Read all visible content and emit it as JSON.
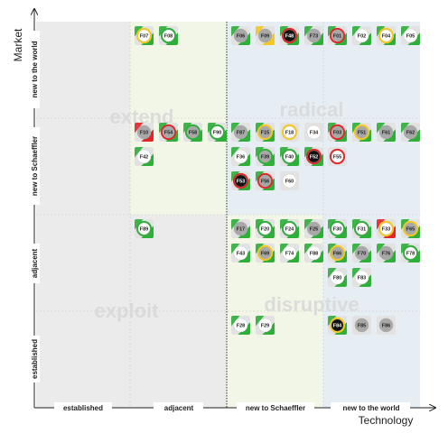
{
  "axes": {
    "x_title": "Technology",
    "y_title": "Market",
    "x_levels": [
      "established",
      "adjacent",
      "new to Schaeffler",
      "new to the world"
    ],
    "y_levels": [
      "established",
      "adjacent",
      "new to Schaeffler",
      "new to the world"
    ]
  },
  "zones": {
    "extend": "extend",
    "radical": "radical",
    "exploit": "exploit",
    "disruptive": "disruptive"
  },
  "colors": {
    "grey_zone": "#ebebeb",
    "green_zone": "#f2f6e6",
    "blue_zone": "#e6eef4",
    "chip_bg": "#e2e2e2",
    "green": "#2fae3a",
    "red": "#e0262a",
    "yellow": "#f4c820",
    "dark": "#111111",
    "circle_grey": "#a8a8a8",
    "circle_white": "#ffffff"
  },
  "chips": [
    {
      "label": "F07",
      "x": 1,
      "y": 3,
      "col": 0,
      "row": 0,
      "fill": "white",
      "ring": "yellow",
      "corner": "green"
    },
    {
      "label": "F08",
      "x": 1,
      "y": 3,
      "col": 1,
      "row": 0,
      "fill": "white",
      "ring": "green",
      "corner": "green"
    },
    {
      "label": "F06",
      "x": 2,
      "y": 3,
      "col": 0,
      "row": 0,
      "fill": "grey",
      "ring": "none",
      "corner": "green"
    },
    {
      "label": "F09",
      "x": 2,
      "y": 3,
      "col": 1,
      "row": 0,
      "fill": "grey",
      "ring": "none",
      "corner": "yellow"
    },
    {
      "label": "F48",
      "x": 2,
      "y": 3,
      "col": 2,
      "row": 0,
      "fill": "dark",
      "ring": "red",
      "corner": "green"
    },
    {
      "label": "F73",
      "x": 2,
      "y": 3,
      "col": 3,
      "row": 0,
      "fill": "grey",
      "ring": "none",
      "corner": "green"
    },
    {
      "label": "F01",
      "x": 3,
      "y": 3,
      "col": 0,
      "row": 0,
      "fill": "grey",
      "ring": "red",
      "corner": "green"
    },
    {
      "label": "F02",
      "x": 3,
      "y": 3,
      "col": 1,
      "row": 0,
      "fill": "white",
      "ring": "none",
      "corner": "green"
    },
    {
      "label": "F04",
      "x": 3,
      "y": 3,
      "col": 2,
      "row": 0,
      "fill": "white",
      "ring": "yellow",
      "corner": "green"
    },
    {
      "label": "F05",
      "x": 3,
      "y": 3,
      "col": 3,
      "row": 0,
      "fill": "white",
      "ring": "none",
      "corner": "green"
    },
    {
      "label": "F10",
      "x": 1,
      "y": 2,
      "col": 0,
      "row": 0,
      "fill": "grey",
      "ring": "none",
      "corner": "red"
    },
    {
      "label": "F54",
      "x": 1,
      "y": 2,
      "col": 1,
      "row": 0,
      "fill": "grey",
      "ring": "red",
      "corner": "green"
    },
    {
      "label": "F58",
      "x": 1,
      "y": 2,
      "col": 2,
      "row": 0,
      "fill": "grey",
      "ring": "green",
      "corner": "green"
    },
    {
      "label": "F90",
      "x": 1,
      "y": 2,
      "col": 3,
      "row": 0,
      "fill": "white",
      "ring": "green",
      "corner": "green"
    },
    {
      "label": "F42",
      "x": 1,
      "y": 2,
      "col": 0,
      "row": 1,
      "fill": "white",
      "ring": "none",
      "corner": "green"
    },
    {
      "label": "F87",
      "x": 2,
      "y": 2,
      "col": 0,
      "row": 0,
      "fill": "grey",
      "ring": "none",
      "corner": "green"
    },
    {
      "label": "F15",
      "x": 2,
      "y": 2,
      "col": 1,
      "row": 0,
      "fill": "grey",
      "ring": "yellow",
      "corner": "green"
    },
    {
      "label": "F18",
      "x": 2,
      "y": 2,
      "col": 2,
      "row": 0,
      "fill": "white",
      "ring": "yellow",
      "corner": "none"
    },
    {
      "label": "F34",
      "x": 2,
      "y": 2,
      "col": 3,
      "row": 0,
      "fill": "white",
      "ring": "none",
      "corner": "none"
    },
    {
      "label": "F36",
      "x": 2,
      "y": 2,
      "col": 0,
      "row": 1,
      "fill": "white",
      "ring": "none",
      "corner": "green"
    },
    {
      "label": "F39",
      "x": 2,
      "y": 2,
      "col": 1,
      "row": 1,
      "fill": "grey",
      "ring": "green",
      "corner": "green"
    },
    {
      "label": "F40",
      "x": 2,
      "y": 2,
      "col": 2,
      "row": 1,
      "fill": "white",
      "ring": "green",
      "corner": "green"
    },
    {
      "label": "F52",
      "x": 2,
      "y": 2,
      "col": 3,
      "row": 1,
      "fill": "dark",
      "ring": "red",
      "corner": "green"
    },
    {
      "label": "F53",
      "x": 2,
      "y": 2,
      "col": 0,
      "row": 2,
      "fill": "dark",
      "ring": "red",
      "corner": "green"
    },
    {
      "label": "F56",
      "x": 2,
      "y": 2,
      "col": 1,
      "row": 2,
      "fill": "grey",
      "ring": "red",
      "corner": "green"
    },
    {
      "label": "F60",
      "x": 2,
      "y": 2,
      "col": 2,
      "row": 2,
      "fill": "white",
      "ring": "none",
      "corner": "none"
    },
    {
      "label": "F03",
      "x": 3,
      "y": 2,
      "col": 0,
      "row": 0,
      "fill": "grey",
      "ring": "red",
      "corner": "green"
    },
    {
      "label": "F51",
      "x": 3,
      "y": 2,
      "col": 1,
      "row": 0,
      "fill": "grey",
      "ring": "yellow",
      "corner": "green"
    },
    {
      "label": "F61",
      "x": 3,
      "y": 2,
      "col": 2,
      "row": 0,
      "fill": "grey",
      "ring": "none",
      "corner": "green"
    },
    {
      "label": "F62",
      "x": 3,
      "y": 2,
      "col": 3,
      "row": 0,
      "fill": "grey",
      "ring": "none",
      "corner": "green"
    },
    {
      "label": "F55",
      "x": 3,
      "y": 2,
      "col": 0,
      "row": 1,
      "fill": "white",
      "ring": "red",
      "corner": "none"
    },
    {
      "label": "F89",
      "x": 1,
      "y": 1,
      "col": 0,
      "row": 0,
      "fill": "white",
      "ring": "green",
      "corner": "green"
    },
    {
      "label": "F17",
      "x": 2,
      "y": 1,
      "col": 0,
      "row": 0,
      "fill": "grey",
      "ring": "none",
      "corner": "green"
    },
    {
      "label": "F20",
      "x": 2,
      "y": 1,
      "col": 1,
      "row": 0,
      "fill": "white",
      "ring": "green",
      "corner": "green"
    },
    {
      "label": "F24",
      "x": 2,
      "y": 1,
      "col": 2,
      "row": 0,
      "fill": "white",
      "ring": "green",
      "corner": "green"
    },
    {
      "label": "F25",
      "x": 2,
      "y": 1,
      "col": 3,
      "row": 0,
      "fill": "grey",
      "ring": "none",
      "corner": "green"
    },
    {
      "label": "F43",
      "x": 2,
      "y": 1,
      "col": 0,
      "row": 1,
      "fill": "white",
      "ring": "none",
      "corner": "green"
    },
    {
      "label": "F69",
      "x": 2,
      "y": 1,
      "col": 1,
      "row": 1,
      "fill": "grey",
      "ring": "yellow",
      "corner": "green"
    },
    {
      "label": "F74",
      "x": 2,
      "y": 1,
      "col": 2,
      "row": 1,
      "fill": "white",
      "ring": "none",
      "corner": "green"
    },
    {
      "label": "F88",
      "x": 2,
      "y": 1,
      "col": 3,
      "row": 1,
      "fill": "white",
      "ring": "none",
      "corner": "green"
    },
    {
      "label": "F30",
      "x": 3,
      "y": 1,
      "col": 0,
      "row": 0,
      "fill": "white",
      "ring": "green",
      "corner": "green"
    },
    {
      "label": "F31",
      "x": 3,
      "y": 1,
      "col": 1,
      "row": 0,
      "fill": "white",
      "ring": "green",
      "corner": "green"
    },
    {
      "label": "F33",
      "x": 3,
      "y": 1,
      "col": 2,
      "row": 0,
      "fill": "white",
      "ring": "yellow",
      "corner": "red"
    },
    {
      "label": "F65",
      "x": 3,
      "y": 1,
      "col": 3,
      "row": 0,
      "fill": "grey",
      "ring": "yellow",
      "corner": "green"
    },
    {
      "label": "F66",
      "x": 3,
      "y": 1,
      "col": 0,
      "row": 1,
      "fill": "grey",
      "ring": "yellow",
      "corner": "green"
    },
    {
      "label": "F70",
      "x": 3,
      "y": 1,
      "col": 1,
      "row": 1,
      "fill": "grey",
      "ring": "none",
      "corner": "green"
    },
    {
      "label": "F76",
      "x": 3,
      "y": 1,
      "col": 2,
      "row": 1,
      "fill": "grey",
      "ring": "none",
      "corner": "green"
    },
    {
      "label": "F78",
      "x": 3,
      "y": 1,
      "col": 3,
      "row": 1,
      "fill": "white",
      "ring": "green",
      "corner": "green"
    },
    {
      "label": "F80",
      "x": 3,
      "y": 1,
      "col": 0,
      "row": 2,
      "fill": "white",
      "ring": "none",
      "corner": "green"
    },
    {
      "label": "F83",
      "x": 3,
      "y": 1,
      "col": 1,
      "row": 2,
      "fill": "white",
      "ring": "none",
      "corner": "green"
    },
    {
      "label": "F28",
      "x": 2,
      "y": 0,
      "col": 0,
      "row": 0,
      "fill": "white",
      "ring": "none",
      "corner": "green"
    },
    {
      "label": "F29",
      "x": 2,
      "y": 0,
      "col": 1,
      "row": 0,
      "fill": "white",
      "ring": "none",
      "corner": "green"
    },
    {
      "label": "F84",
      "x": 3,
      "y": 0,
      "col": 0,
      "row": 0,
      "fill": "dark",
      "ring": "yellow",
      "corner": "green"
    },
    {
      "label": "F85",
      "x": 3,
      "y": 0,
      "col": 1,
      "row": 0,
      "fill": "grey",
      "ring": "none",
      "corner": "none"
    },
    {
      "label": "F86",
      "x": 3,
      "y": 0,
      "col": 2,
      "row": 0,
      "fill": "grey",
      "ring": "none",
      "corner": "none"
    }
  ]
}
